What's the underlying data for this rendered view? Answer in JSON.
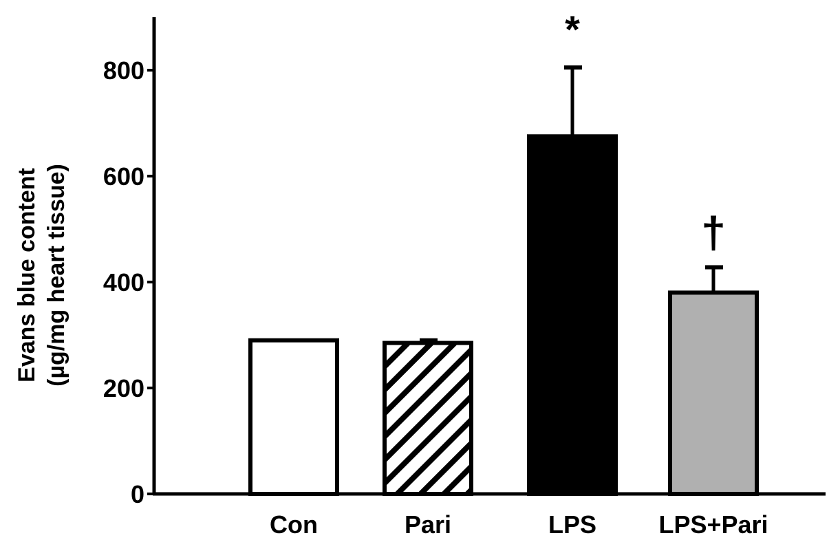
{
  "chart_data": {
    "type": "bar",
    "title": "",
    "xlabel": "",
    "ylabel": [
      "Evans blue content",
      "(µg/mg heart tissue)"
    ],
    "categories": [
      "Con",
      "Pari",
      "LPS",
      "LPS+Pari"
    ],
    "values": [
      290,
      285,
      675,
      380
    ],
    "error_upper": [
      0,
      5,
      130,
      48
    ],
    "significance": [
      "",
      "",
      "*",
      "†"
    ],
    "fills": [
      "white",
      "hatched",
      "#000000",
      "#b0b0b0"
    ],
    "ylim": [
      0,
      900
    ],
    "yticks": [
      0,
      200,
      400,
      600,
      800
    ],
    "grid": false,
    "legend": "none"
  }
}
